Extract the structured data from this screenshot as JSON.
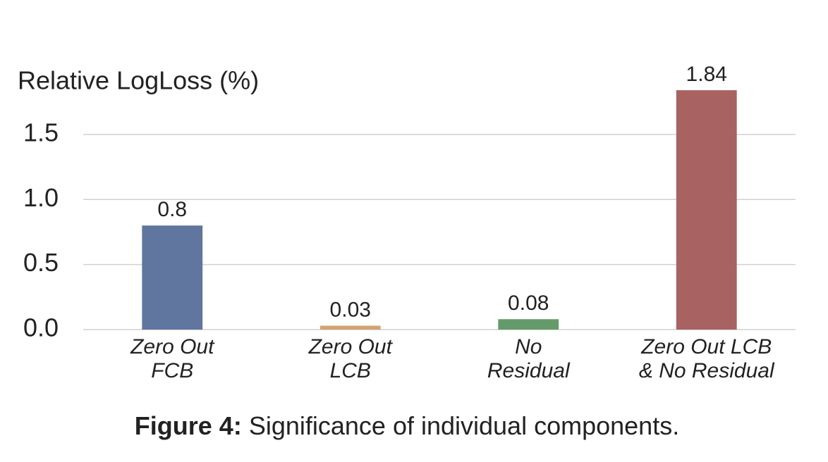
{
  "chart_data": {
    "type": "bar",
    "ylabel": "Relative LogLoss (%)",
    "categories": [
      [
        "Zero Out",
        "FCB"
      ],
      [
        "Zero Out",
        "LCB"
      ],
      [
        "No",
        "Residual"
      ],
      [
        "Zero Out LCB",
        "& No Residual"
      ]
    ],
    "values": [
      0.8,
      0.03,
      0.08,
      1.84
    ],
    "colors": [
      "#61769f",
      "#d4a373",
      "#659b6a",
      "#a86262"
    ],
    "ylim": [
      0,
      1.9
    ],
    "yticks": [
      {
        "value": 0,
        "label": "0.0"
      },
      0.5,
      {
        "value": 1,
        "label": "1.0"
      },
      1.5
    ],
    "grid": true,
    "caption_label": "Figure 4:",
    "caption_text": "Significance of individual components."
  }
}
